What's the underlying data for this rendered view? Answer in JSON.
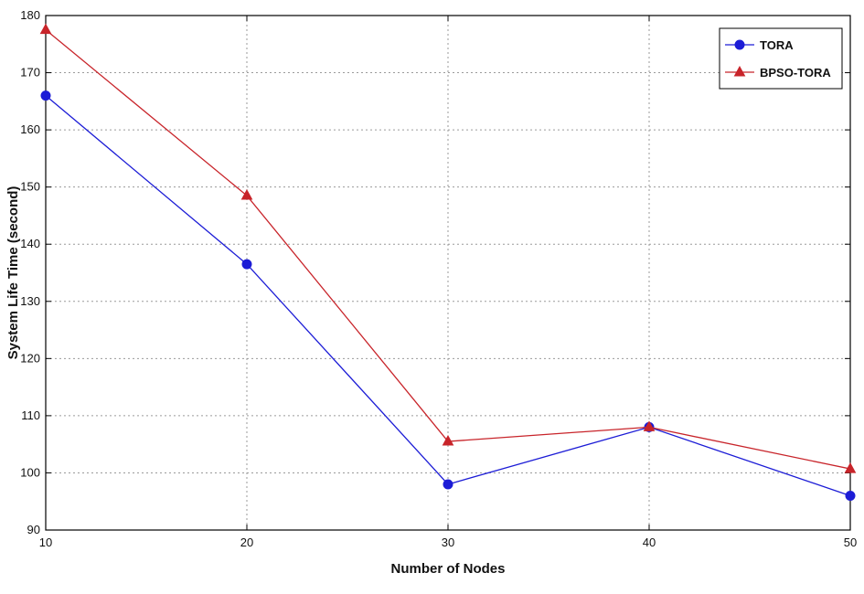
{
  "chart_data": {
    "type": "line",
    "title": "",
    "xlabel": "Number of Nodes",
    "ylabel": "System Life Time (second)",
    "x": [
      10,
      20,
      30,
      40,
      50
    ],
    "xlim": [
      10,
      50
    ],
    "ylim": [
      90,
      180
    ],
    "xticks": [
      "10",
      "20",
      "30",
      "40",
      "50"
    ],
    "yticks": [
      "90",
      "100",
      "110",
      "120",
      "130",
      "140",
      "150",
      "160",
      "170",
      "180"
    ],
    "grid": true,
    "legend_position": "top-right",
    "series": [
      {
        "name": "TORA",
        "values": [
          166,
          136.5,
          98,
          108,
          96
        ],
        "color": "#1c1cd6",
        "marker": "circle"
      },
      {
        "name": "BPSO-TORA",
        "values": [
          177.5,
          148.5,
          105.5,
          108,
          100.7
        ],
        "color": "#c8242a",
        "marker": "triangle"
      }
    ]
  }
}
